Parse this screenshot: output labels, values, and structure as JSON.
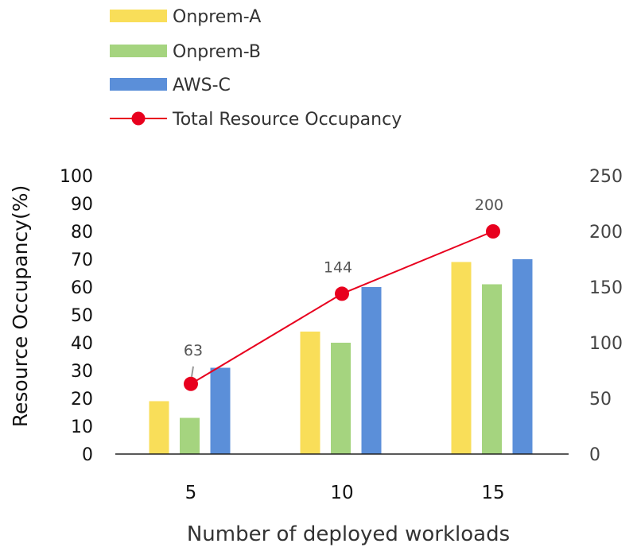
{
  "chart_data": {
    "type": "bar",
    "categories": [
      "5",
      "10",
      "15"
    ],
    "xlabel": "Number of deployed workloads",
    "ylabel": "Resource Occupancy(%)",
    "ylim": [
      0,
      100
    ],
    "yticks": [
      0,
      10,
      20,
      30,
      40,
      50,
      60,
      70,
      80,
      90,
      100
    ],
    "y2lim": [
      0,
      250
    ],
    "y2ticks": [
      0,
      50,
      100,
      150,
      200,
      250
    ],
    "legend_position": "top-left",
    "series": [
      {
        "name": "Onprem-A",
        "type": "bar",
        "axis": "left",
        "color": "#F9DE59",
        "values": [
          19,
          44,
          69
        ]
      },
      {
        "name": "Onprem-B",
        "type": "bar",
        "axis": "left",
        "color": "#A5D47F",
        "values": [
          13,
          40,
          61
        ]
      },
      {
        "name": "AWS-C",
        "type": "bar",
        "axis": "left",
        "color": "#5B8FD9",
        "values": [
          31,
          60,
          70
        ]
      },
      {
        "name": "Total Resource Occupancy",
        "type": "line",
        "axis": "right",
        "color": "#E8001E",
        "values": [
          63,
          144,
          200
        ],
        "labels": [
          "63",
          "144",
          "200"
        ]
      }
    ]
  }
}
